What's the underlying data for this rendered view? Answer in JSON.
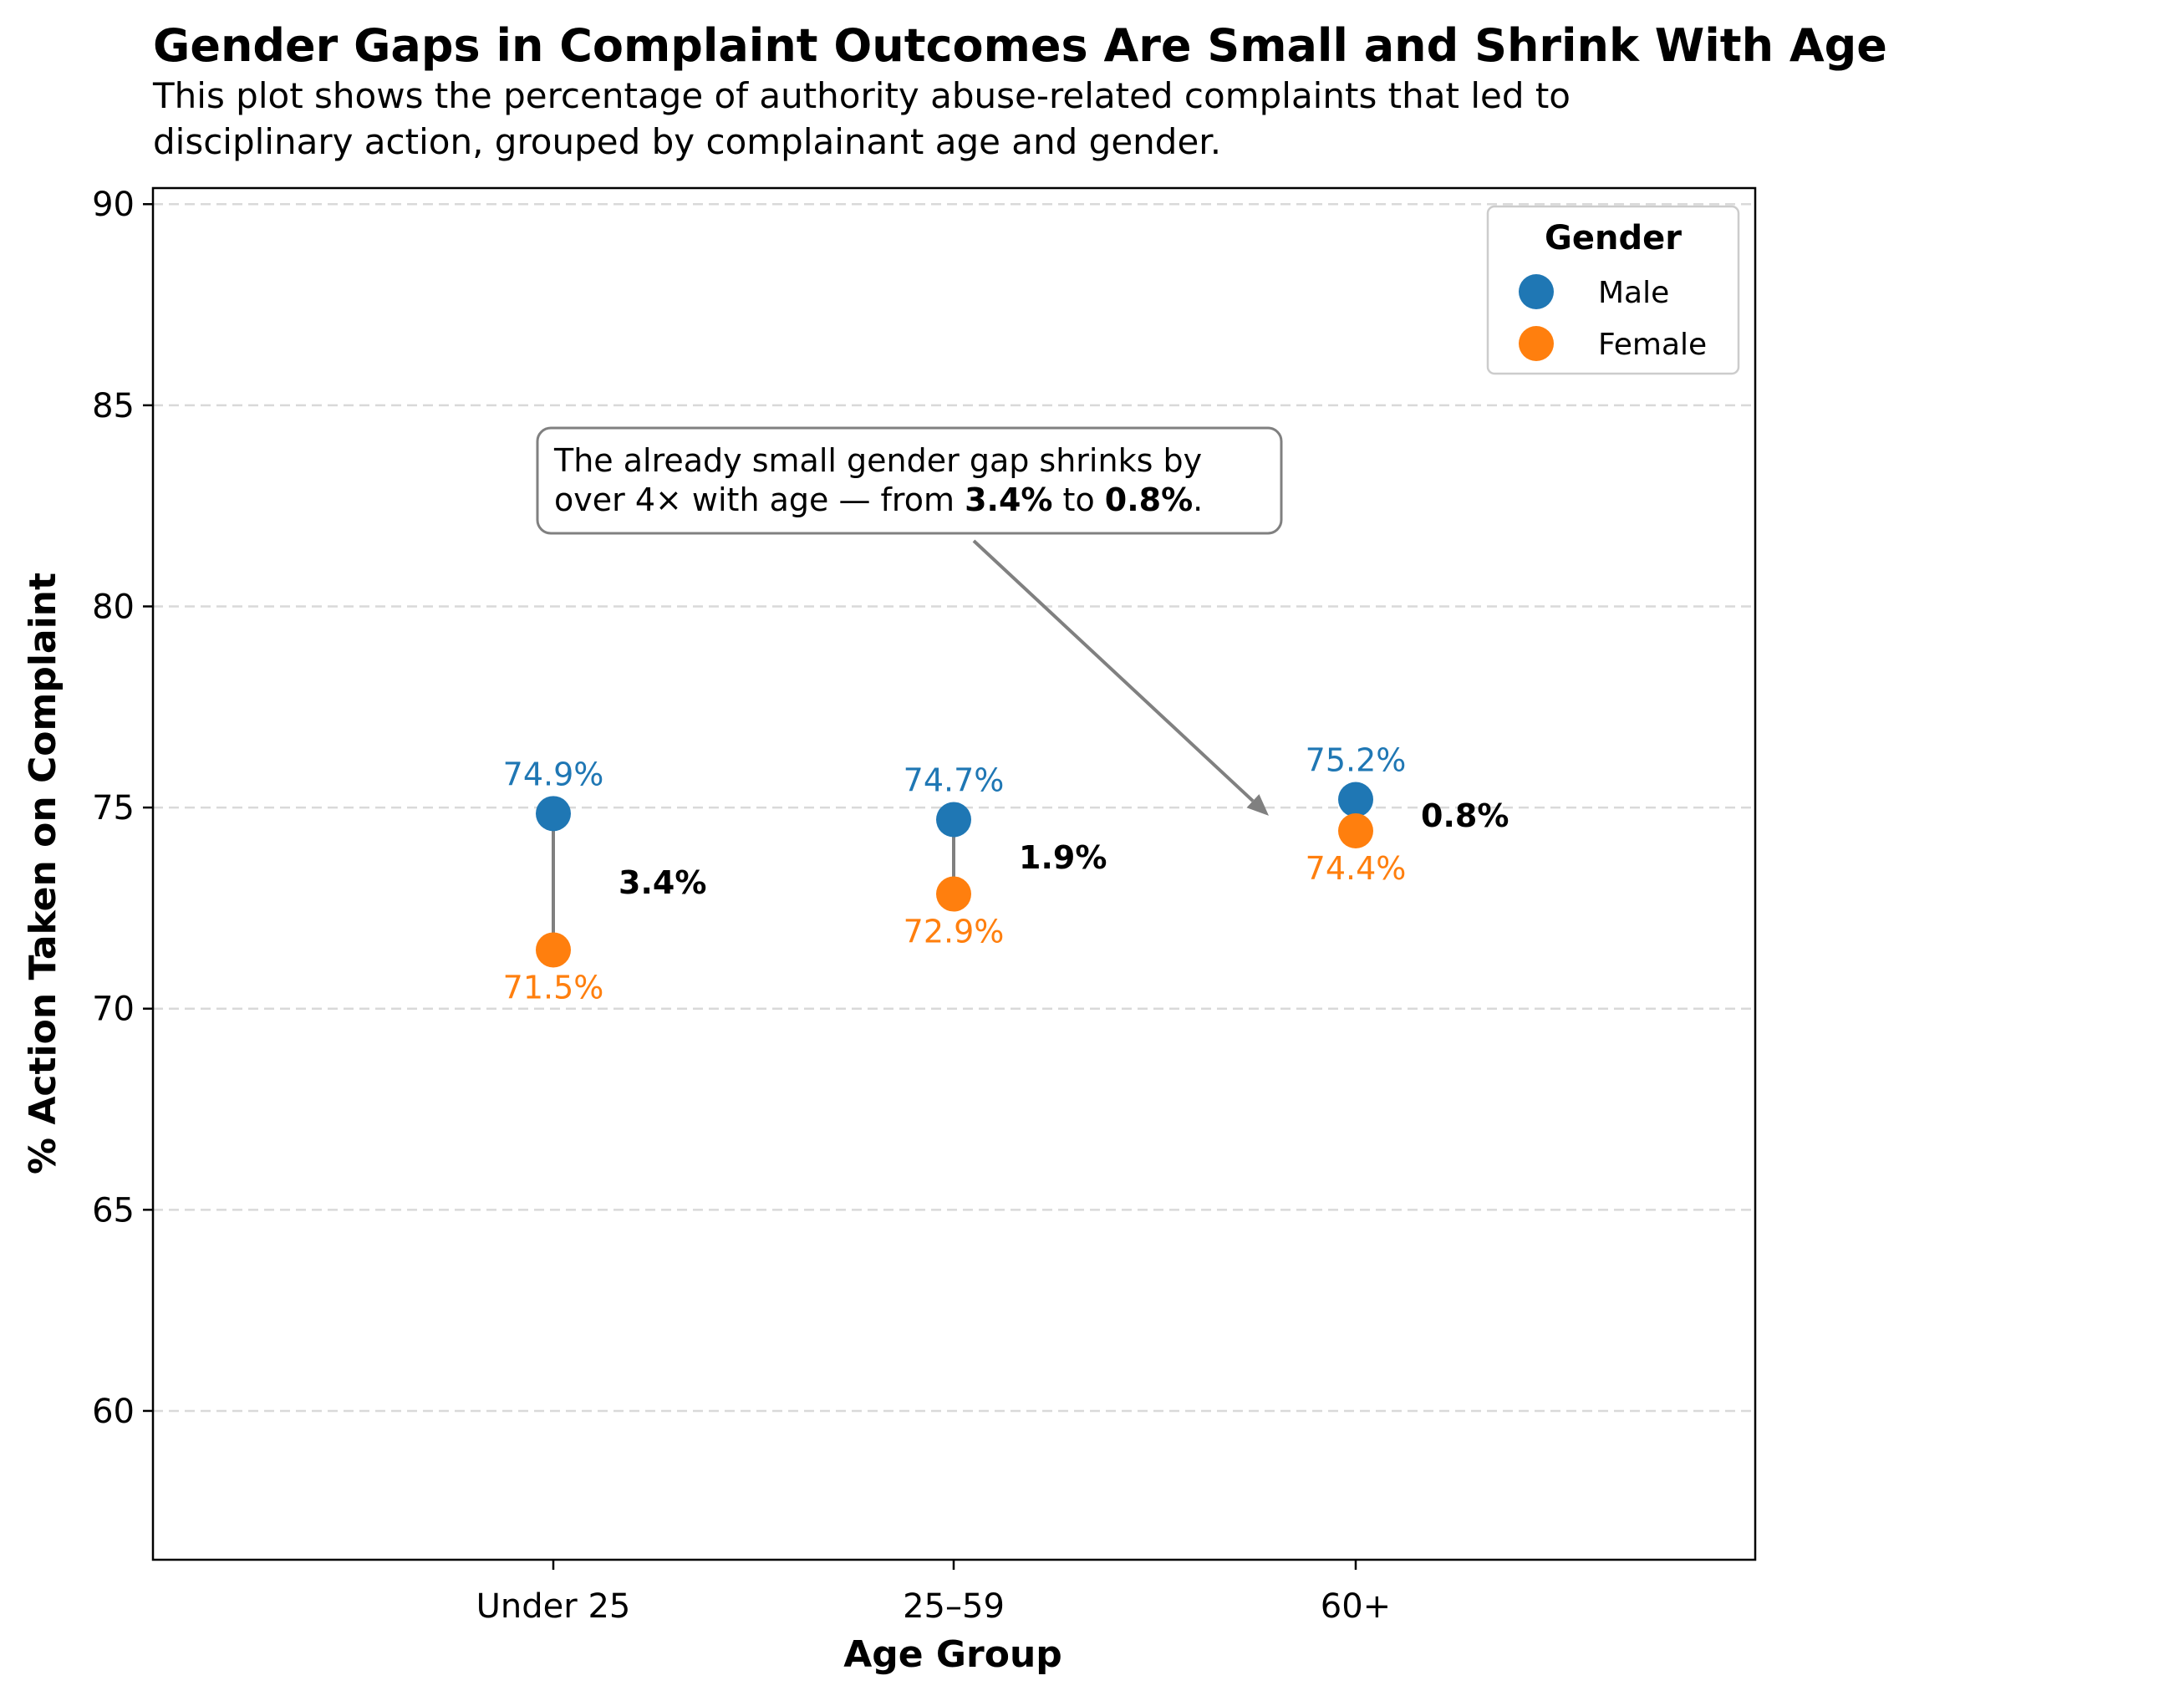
{
  "chart_data": {
    "type": "scatter",
    "title": "Gender Gaps in Complaint Outcomes Are Small and Shrink With Age",
    "subtitle_lines": [
      "This plot shows the percentage of authority abuse-related complaints that led to",
      "disciplinary action, grouped by complainant age and gender."
    ],
    "xlabel": "Age Group",
    "ylabel": "% Action Taken on Complaint",
    "categories": [
      "Under 25",
      "25–59",
      "60+"
    ],
    "ylim": [
      56.3,
      90.4
    ],
    "y_ticks": [
      60,
      65,
      70,
      75,
      80,
      85,
      90
    ],
    "grid": "y, dashed",
    "series": [
      {
        "name": "Male",
        "color": "#1f77b4",
        "values": [
          74.85,
          74.7,
          75.2
        ],
        "value_labels": [
          "74.9%",
          "74.7%",
          "75.2%"
        ]
      },
      {
        "name": "Female",
        "color": "#ff7f0e",
        "values": [
          71.46,
          72.85,
          74.42
        ],
        "value_labels": [
          "71.5%",
          "72.9%",
          "74.4%"
        ]
      }
    ],
    "gap_labels": [
      "3.4%",
      "1.9%",
      "0.8%"
    ],
    "connector_color": "#808080",
    "legend": {
      "title": "Gender",
      "position": "top-right",
      "entries": [
        "Male",
        "Female"
      ]
    },
    "annotation": {
      "line1": "The already small gender gap shrinks by",
      "line2_parts": [
        {
          "text": "over 4× with age — from ",
          "bold": false
        },
        {
          "text": "3.4%",
          "bold": true
        },
        {
          "text": " to ",
          "bold": false
        },
        {
          "text": "0.8%",
          "bold": true
        },
        {
          "text": ".",
          "bold": false
        }
      ],
      "points_to_category": "60+",
      "points_to_value": 74.9
    }
  }
}
